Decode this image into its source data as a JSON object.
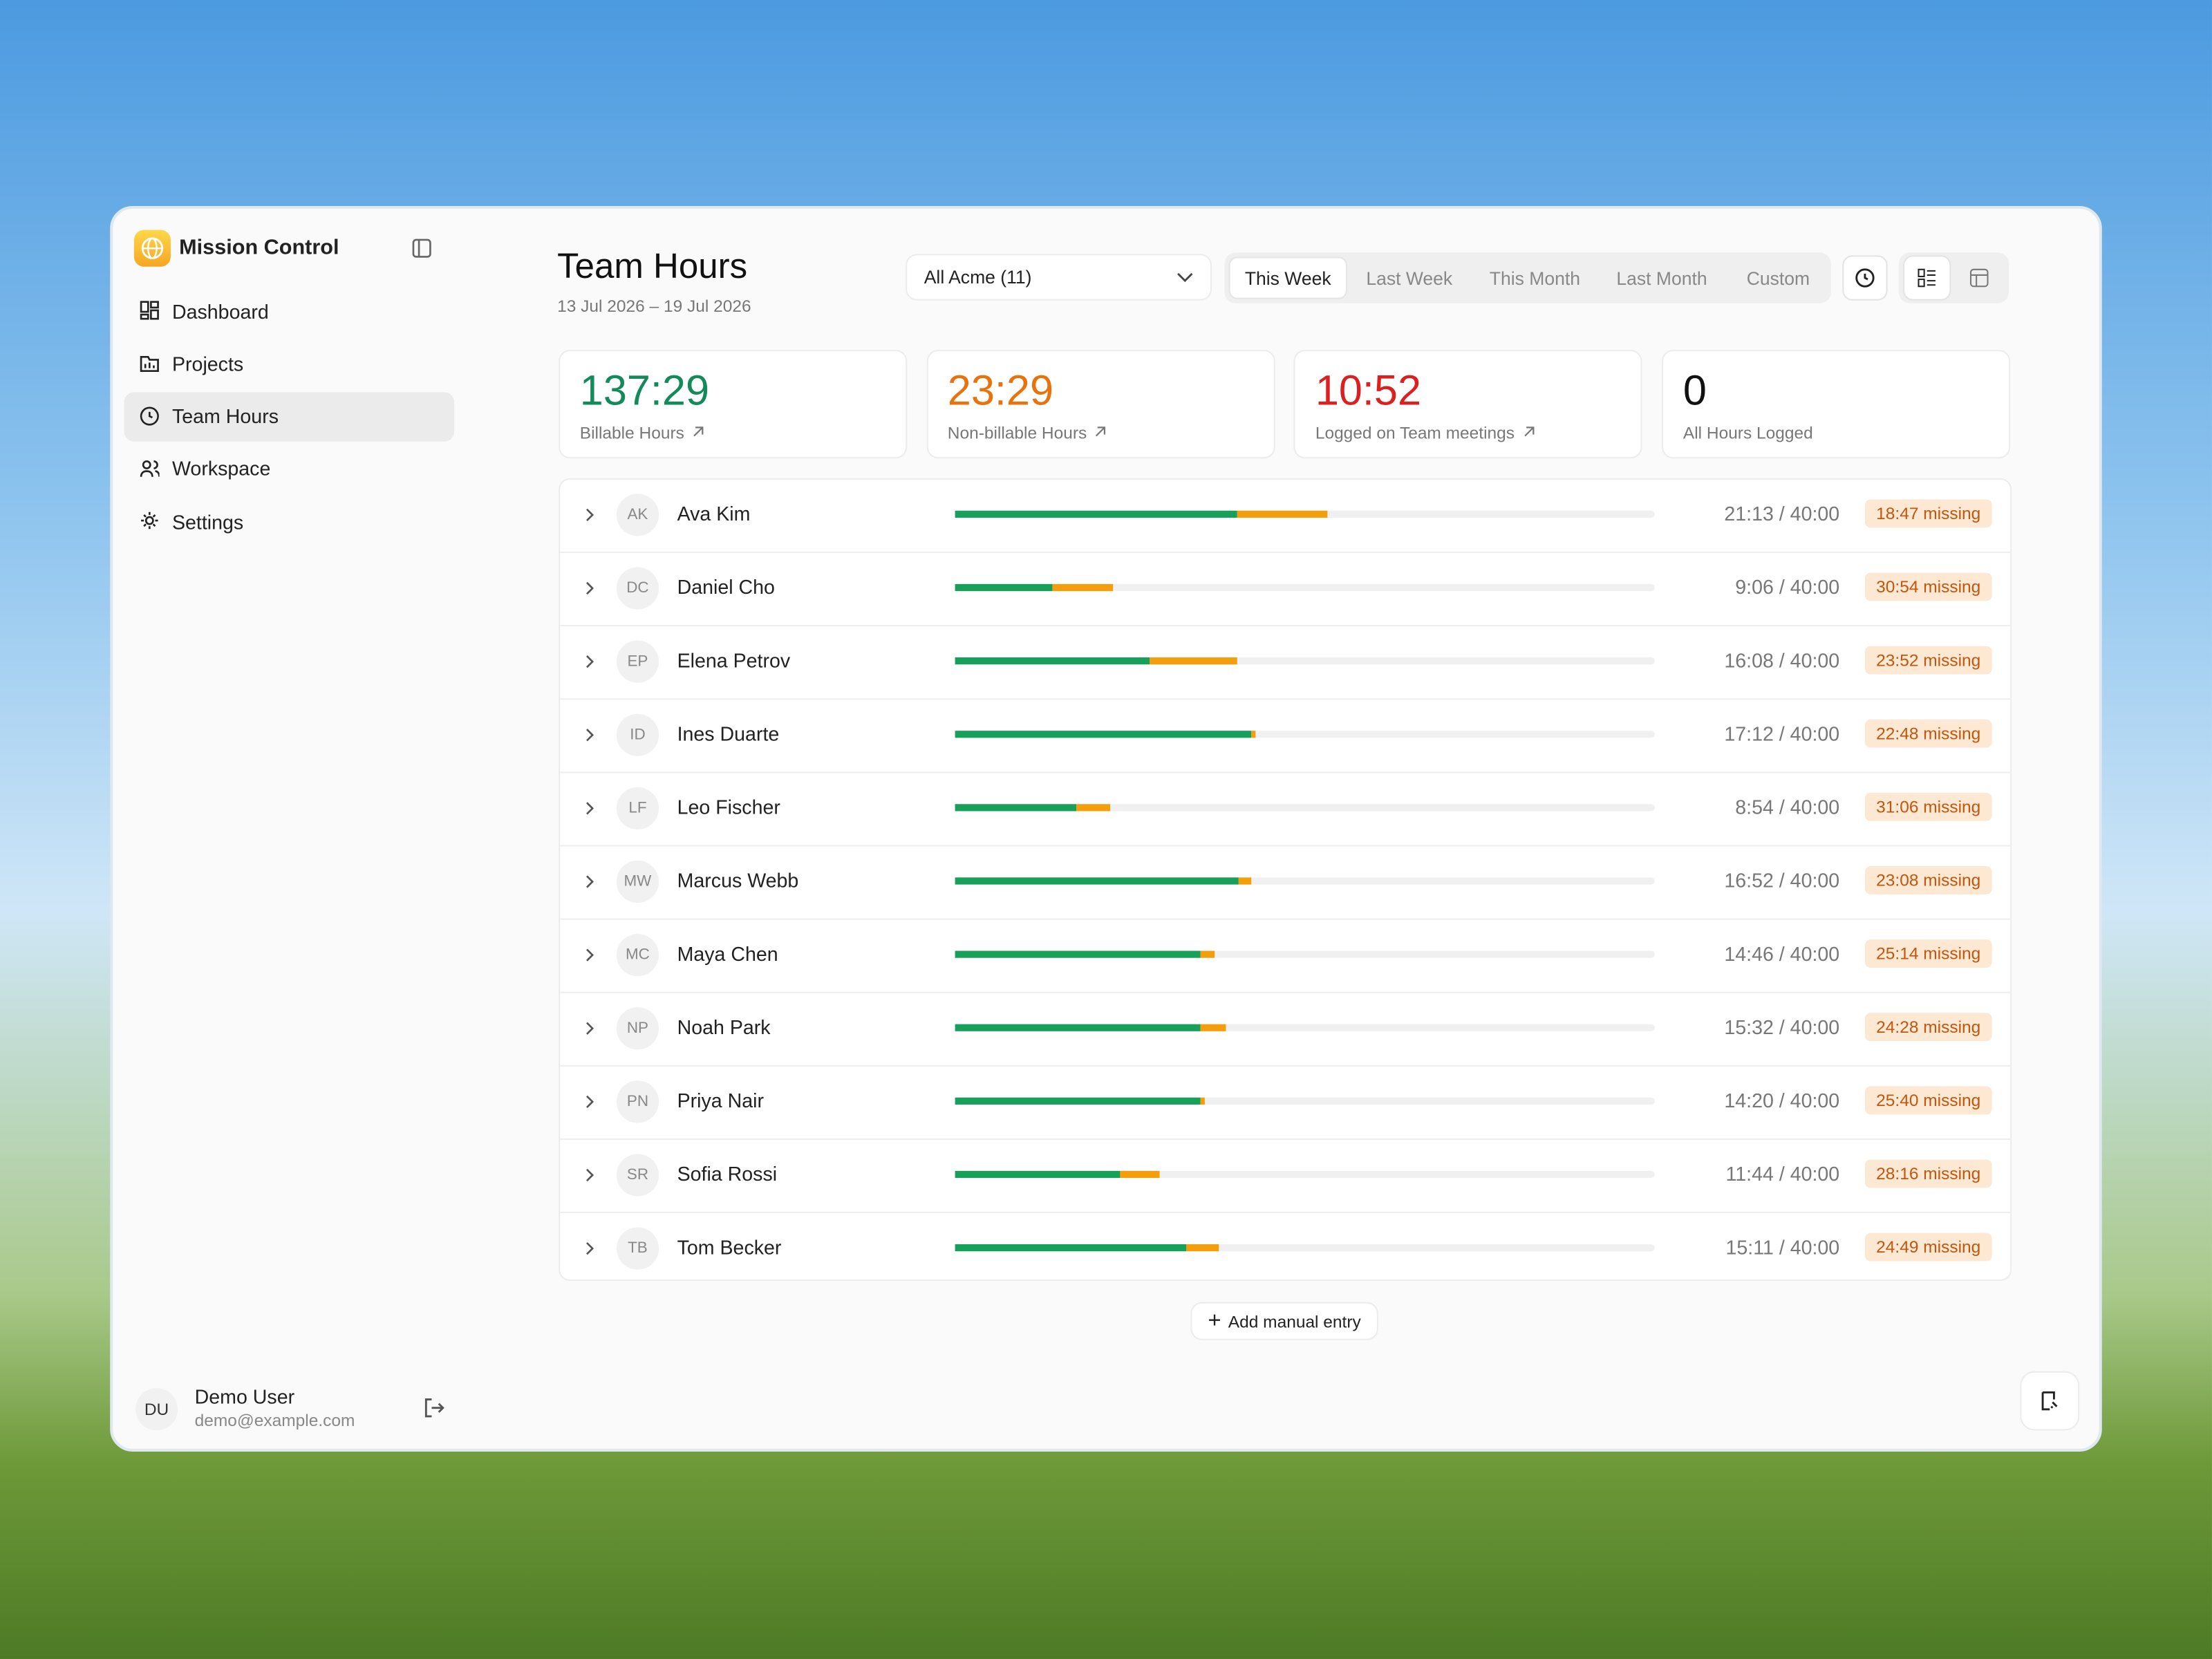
{
  "sidebar": {
    "app_name": "Mission Control",
    "nav": [
      {
        "label": "Dashboard",
        "active": false
      },
      {
        "label": "Projects",
        "active": false
      },
      {
        "label": "Team Hours",
        "active": true
      },
      {
        "label": "Workspace",
        "active": false
      },
      {
        "label": "Settings",
        "active": false
      }
    ]
  },
  "user": {
    "initials": "DU",
    "name": "Demo User",
    "email": "demo@example.com"
  },
  "header": {
    "title": "Team Hours",
    "date_range": "13 Jul 2026 – 19 Jul 2026",
    "filter": "All Acme (11)",
    "tabs": [
      {
        "label": "This Week",
        "active": true
      },
      {
        "label": "Last Week",
        "active": false
      },
      {
        "label": "This Month",
        "active": false
      },
      {
        "label": "Last Month",
        "active": false
      },
      {
        "label": "Custom",
        "active": false
      }
    ]
  },
  "stats": [
    {
      "value": "137:29",
      "label": "Billable Hours",
      "color": "#138a5a",
      "link": true
    },
    {
      "value": "23:29",
      "label": "Non-billable Hours",
      "color": "#e8720c",
      "link": true
    },
    {
      "value": "10:52",
      "label": "Logged on Team meetings",
      "color": "#dc1f1f",
      "link": true
    },
    {
      "value": "0",
      "label": "All Hours Logged",
      "color": "#111111",
      "link": false
    }
  ],
  "progress": {
    "xlim": [
      0,
      40
    ],
    "billable_color": "#16a05a",
    "non_billable_color": "#f59e0b"
  },
  "members": [
    {
      "initials": "AK",
      "name": "Ava Kim",
      "hours": "21:13 / 40:00",
      "missing": "18:47 missing",
      "billable": 16.1,
      "non_billable": 5.2
    },
    {
      "initials": "DC",
      "name": "Daniel Cho",
      "hours": "9:06 / 40:00",
      "missing": "30:54 missing",
      "billable": 5.6,
      "non_billable": 3.4
    },
    {
      "initials": "EP",
      "name": "Elena Petrov",
      "hours": "16:08 / 40:00",
      "missing": "23:52 missing",
      "billable": 11.1,
      "non_billable": 5.0
    },
    {
      "initials": "ID",
      "name": "Ines Duarte",
      "hours": "17:12 / 40:00",
      "missing": "22:48 missing",
      "billable": 16.9,
      "non_billable": 0.3
    },
    {
      "initials": "LF",
      "name": "Leo Fischer",
      "hours": "8:54 / 40:00",
      "missing": "31:06 missing",
      "billable": 6.9,
      "non_billable": 2.0
    },
    {
      "initials": "MW",
      "name": "Marcus Webb",
      "hours": "16:52 / 40:00",
      "missing": "23:08 missing",
      "billable": 16.2,
      "non_billable": 0.7
    },
    {
      "initials": "MC",
      "name": "Maya Chen",
      "hours": "14:46 / 40:00",
      "missing": "25:14 missing",
      "billable": 14.0,
      "non_billable": 0.8
    },
    {
      "initials": "NP",
      "name": "Noah Park",
      "hours": "15:32 / 40:00",
      "missing": "24:28 missing",
      "billable": 14.0,
      "non_billable": 1.5
    },
    {
      "initials": "PN",
      "name": "Priya Nair",
      "hours": "14:20 / 40:00",
      "missing": "25:40 missing",
      "billable": 14.0,
      "non_billable": 0.3
    },
    {
      "initials": "SR",
      "name": "Sofia Rossi",
      "hours": "11:44 / 40:00",
      "missing": "28:16 missing",
      "billable": 9.4,
      "non_billable": 2.3
    },
    {
      "initials": "TB",
      "name": "Tom Becker",
      "hours": "15:11 / 40:00",
      "missing": "24:49 missing",
      "billable": 13.2,
      "non_billable": 1.9
    }
  ],
  "actions": {
    "add_entry": "Add manual entry"
  }
}
